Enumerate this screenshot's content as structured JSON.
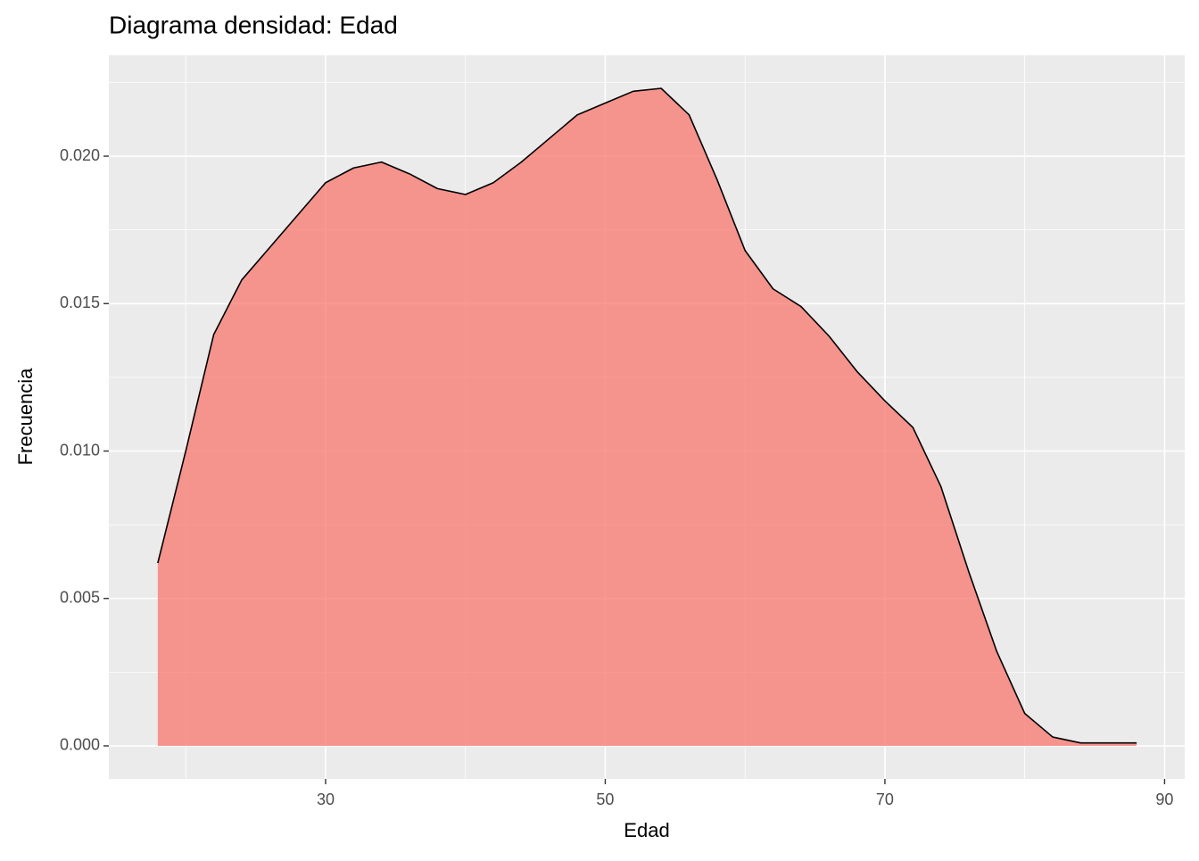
{
  "chart_data": {
    "type": "density",
    "title": "Diagrama densidad: Edad",
    "xlabel": "Edad",
    "ylabel": "Frecuencia",
    "x": [
      18,
      20,
      22,
      24,
      26,
      28,
      30,
      32,
      34,
      36,
      38,
      40,
      42,
      44,
      46,
      48,
      50,
      52,
      54,
      56,
      58,
      60,
      62,
      64,
      66,
      68,
      70,
      72,
      74,
      76,
      78,
      80,
      82,
      84,
      86,
      88
    ],
    "values": [
      0.0062,
      0.01,
      0.01395,
      0.0158,
      0.0169,
      0.018,
      0.0191,
      0.0196,
      0.0198,
      0.0194,
      0.0189,
      0.0187,
      0.0191,
      0.0198,
      0.0206,
      0.0214,
      0.0218,
      0.0222,
      0.0223,
      0.0214,
      0.0192,
      0.0168,
      0.0155,
      0.0149,
      0.0139,
      0.0127,
      0.0117,
      0.0108,
      0.0088,
      0.0059,
      0.0032,
      0.0011,
      0.0003,
      0.0001,
      0.0001,
      0.0001
    ],
    "color": "#F8766D",
    "line_color": "#000000",
    "xlim": [
      14.5,
      91.44
    ],
    "ylim": [
      -0.00112,
      0.02342
    ],
    "xticks": [
      30,
      50,
      70,
      90
    ],
    "yticks": [
      {
        "value": 0,
        "label": "0.000"
      },
      {
        "value": 0.005,
        "label": "0.005"
      },
      {
        "value": 0.01,
        "label": "0.010"
      },
      {
        "value": 0.015,
        "label": "0.015"
      },
      {
        "value": 0.02,
        "label": "0.020"
      }
    ],
    "grid": true
  }
}
